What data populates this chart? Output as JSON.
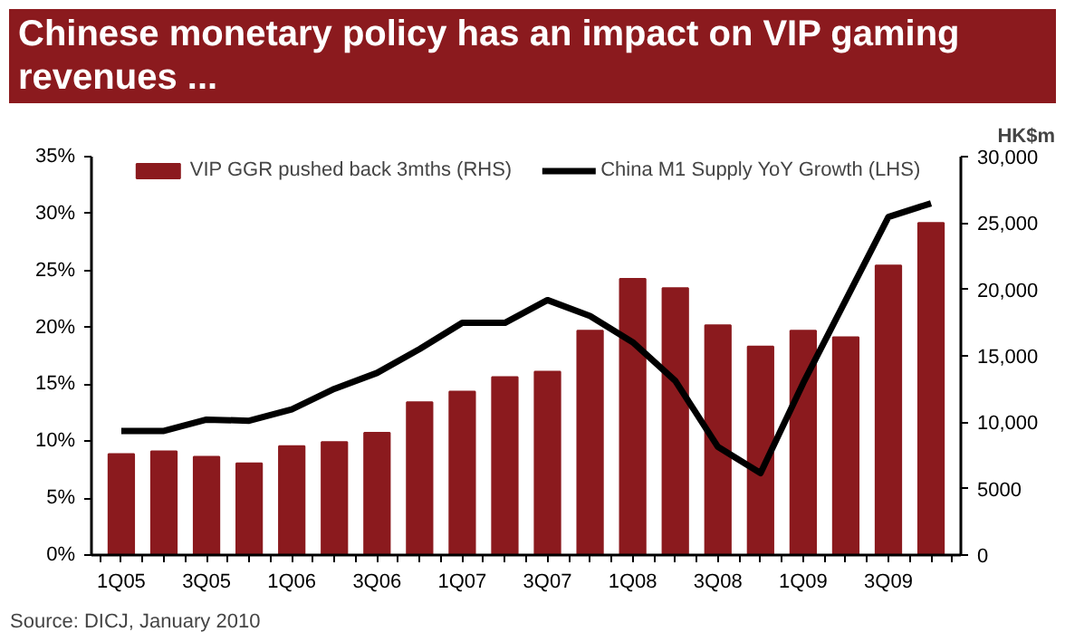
{
  "chart_data": {
    "type": "bar",
    "title": "Chinese monetary policy has an impact on VIP gaming revenues ...",
    "categories": [
      "1Q05",
      null,
      "3Q05",
      null,
      "1Q06",
      null,
      "3Q06",
      null,
      "1Q07",
      null,
      "3Q07",
      null,
      "1Q08",
      null,
      "3Q08",
      null,
      "1Q09",
      null,
      "3Q09",
      null
    ],
    "series": [
      {
        "name": "VIP GGR pushed back 3mths (RHS)",
        "axis": "y2",
        "color": "#8b1a1e",
        "values": [
          7600,
          7800,
          7400,
          6900,
          8200,
          8500,
          9200,
          11500,
          12300,
          13400,
          13800,
          16900,
          20800,
          20100,
          17300,
          15700,
          16900,
          16400,
          21800,
          25000
        ]
      },
      {
        "name": "China M1 Supply YoY Growth (LHS)",
        "type": "line",
        "color": "#000000",
        "values": [
          10.9,
          10.9,
          11.9,
          11.8,
          12.8,
          14.6,
          16.0,
          18.1,
          20.4,
          20.4,
          22.4,
          21.0,
          18.7,
          15.3,
          9.5,
          7.2,
          15.1,
          22.4,
          29.7,
          30.9
        ]
      }
    ],
    "ylim": [
      0,
      35
    ],
    "yticks": [
      {
        "value": 0,
        "label": "0%"
      },
      {
        "value": 5,
        "label": "5%"
      },
      {
        "value": 10,
        "label": "10%"
      },
      {
        "value": 15,
        "label": "15%"
      },
      {
        "value": 20,
        "label": "20%"
      },
      {
        "value": 25,
        "label": "25%"
      },
      {
        "value": 30,
        "label": "30%"
      },
      {
        "value": 35,
        "label": "35%"
      }
    ],
    "y2label": "HK$m",
    "y2lim": [
      0,
      30000
    ],
    "y2ticks": [
      0,
      5000,
      {
        "value": 10000,
        "label": "10,000"
      },
      {
        "value": 15000,
        "label": "15,000"
      },
      {
        "value": 20000,
        "label": "20,000"
      },
      {
        "value": 25000,
        "label": "25,000"
      },
      {
        "value": 30000,
        "label": "30,000"
      }
    ],
    "legend": "top",
    "grid": false,
    "annotations": [
      "Source: DICJ, January 2010"
    ]
  }
}
